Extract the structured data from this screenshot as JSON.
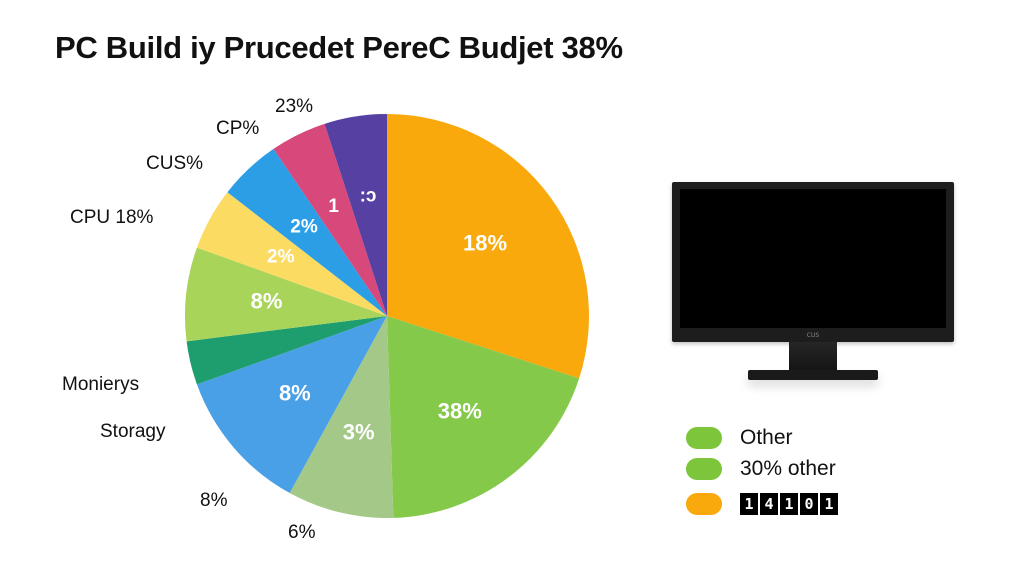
{
  "chart_data": {
    "type": "pie",
    "title": "PC Build iy Prucedet PereC Budjet 38%",
    "slices": [
      {
        "label_inside": "18%",
        "value": 30,
        "color": "#F9A90C"
      },
      {
        "label_inside": "38%",
        "value": 19.5,
        "color": "#85C94A"
      },
      {
        "label_inside": "3%",
        "value": 8.5,
        "color": "#A4C887"
      },
      {
        "label_inside": "8%",
        "value": 11.5,
        "color": "#4AA0E6"
      },
      {
        "label_inside": "",
        "value": 3.5,
        "color": "#1E9E6E"
      },
      {
        "label_inside": "8%",
        "value": 7.5,
        "color": "#A9D45A"
      },
      {
        "label_inside": "2%",
        "value": 5,
        "color": "#FBDB62"
      },
      {
        "label_inside": "2%",
        "value": 5,
        "color": "#2C9EE6"
      },
      {
        "label_inside": "1",
        "value": 4.5,
        "color": "#D6497A"
      },
      {
        "label_inside": ":ɔ",
        "value": 5,
        "color": "#5641A3"
      }
    ],
    "outer_labels": [
      "23%",
      "CP%",
      "CUS%",
      "CPU 18%",
      "Monierys",
      "Storagy",
      "8%",
      "6%"
    ],
    "legend": [
      {
        "label": "Other",
        "color": "#7DC63C"
      },
      {
        "label": "30% other",
        "color": "#7DC63C"
      },
      {
        "label": "",
        "color": "#F9A90C",
        "digits": [
          "1",
          "4",
          "1",
          "0",
          "1"
        ]
      }
    ]
  },
  "monitor": {
    "brand": "CUS"
  }
}
